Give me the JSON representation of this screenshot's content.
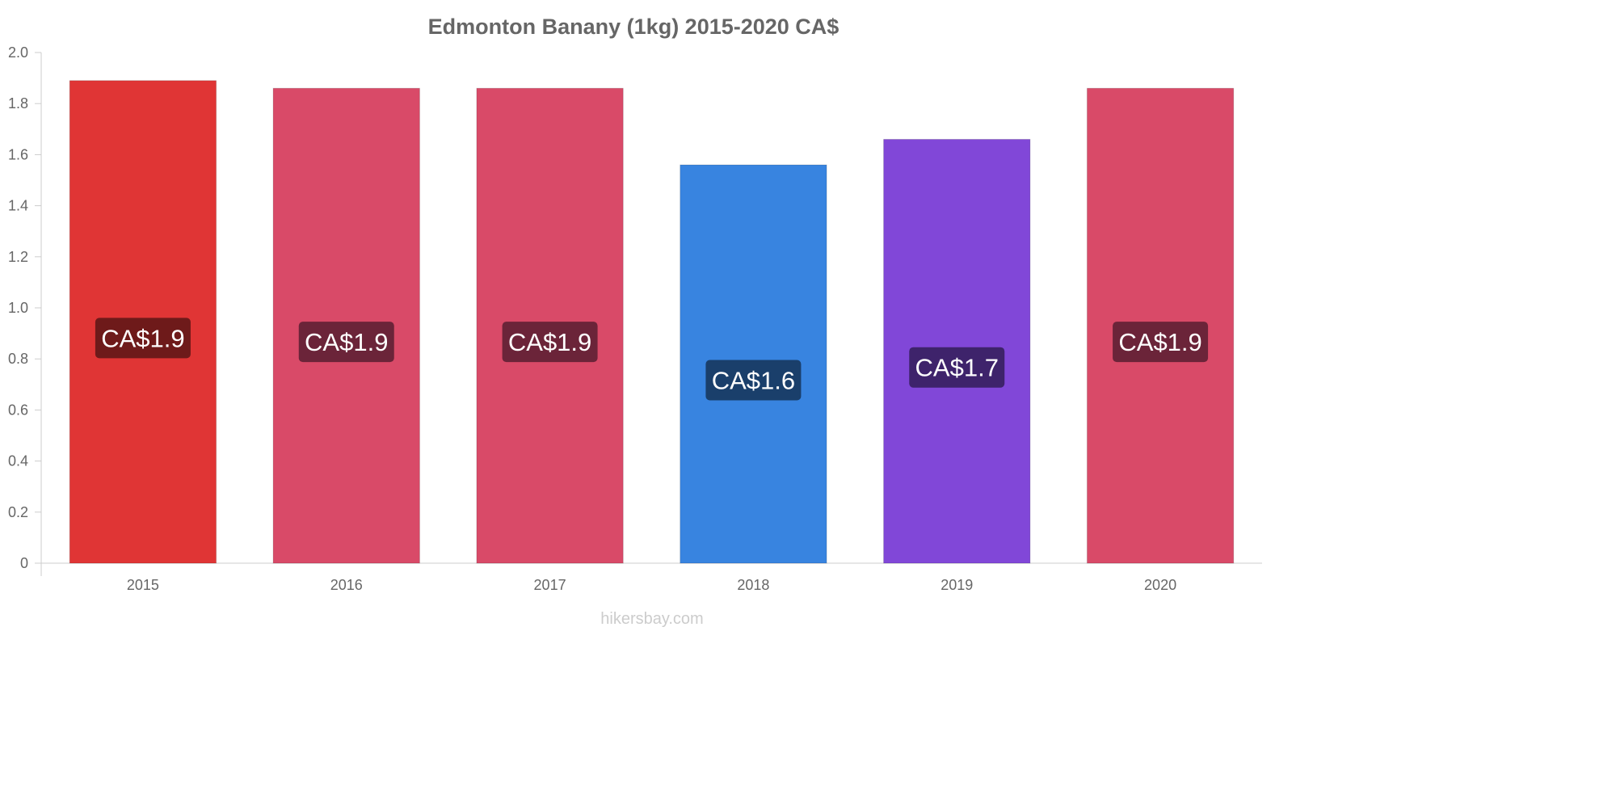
{
  "chart_data": {
    "type": "bar",
    "title": "Edmonton Banany (1kg) 2015-2020 CA$",
    "xlabel": "",
    "ylabel": "",
    "categories": [
      "2015",
      "2016",
      "2017",
      "2018",
      "2019",
      "2020"
    ],
    "values": [
      1.89,
      1.86,
      1.86,
      1.56,
      1.66,
      1.86
    ],
    "data_labels": [
      "CA$1.9",
      "CA$1.9",
      "CA$1.9",
      "CA$1.6",
      "CA$1.7",
      "CA$1.9"
    ],
    "bar_colors": [
      "#e03535",
      "#d94a68",
      "#d94a68",
      "#3884e0",
      "#8147d8",
      "#d94a68"
    ],
    "label_bg_colors": [
      "#6e1a1a",
      "#6b2439",
      "#6b2439",
      "#1a3f6b",
      "#3e236b",
      "#6b2439"
    ],
    "ylim": [
      0,
      2.0
    ],
    "yticks": [
      0,
      0.2,
      0.4,
      0.6,
      0.8,
      1.0,
      1.2,
      1.4,
      1.6,
      1.8,
      2.0
    ],
    "ytick_labels": [
      "0",
      "0.2",
      "0.4",
      "0.6",
      "0.8",
      "1.0",
      "1.2",
      "1.4",
      "1.6",
      "1.8",
      "2.0"
    ],
    "grid": false,
    "source": "hikersbay.com"
  }
}
